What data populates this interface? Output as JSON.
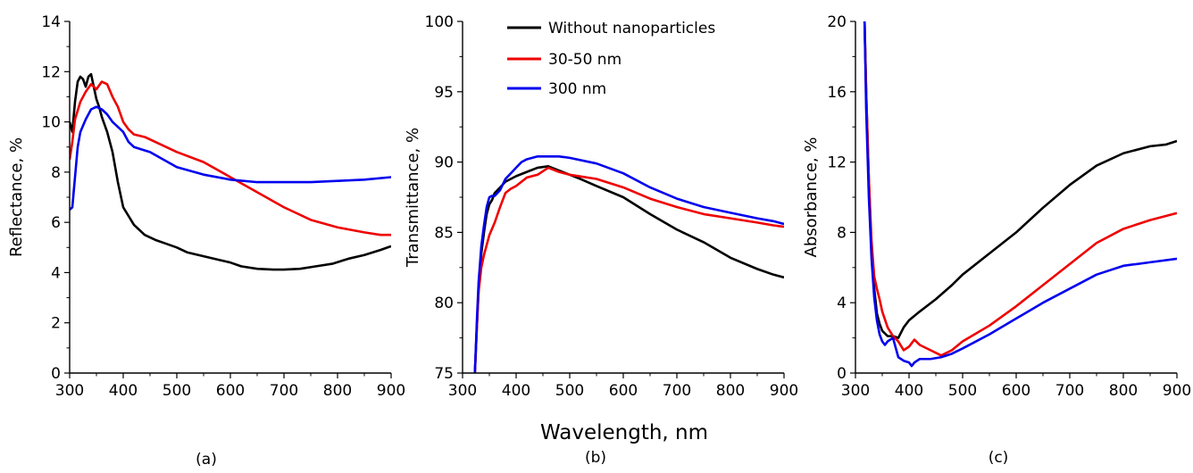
{
  "shared_xlabel": "Wavelength, nm",
  "legend": [
    {
      "name": "Without nanoparticles",
      "color": "#000000"
    },
    {
      "name": "30-50 nm",
      "color": "#ee0000"
    },
    {
      "name": "300 nm",
      "color": "#0000ee"
    }
  ],
  "chart_data": [
    {
      "type": "line",
      "panel_label": "(a)",
      "ylabel": "Reflectance, %",
      "xlim": [
        300,
        900
      ],
      "ylim": [
        0,
        14
      ],
      "xticks": [
        300,
        400,
        500,
        600,
        700,
        800,
        900
      ],
      "yticks": [
        0,
        2,
        4,
        6,
        8,
        10,
        12,
        14
      ],
      "series": [
        {
          "name": "Without nanoparticles",
          "color": "#000000",
          "x": [
            300,
            305,
            310,
            315,
            320,
            325,
            330,
            335,
            340,
            345,
            350,
            355,
            360,
            370,
            380,
            390,
            400,
            420,
            440,
            460,
            480,
            500,
            520,
            550,
            580,
            600,
            620,
            650,
            680,
            700,
            730,
            760,
            790,
            820,
            850,
            880,
            900
          ],
          "y": [
            10,
            9.6,
            10.8,
            11.6,
            11.8,
            11.7,
            11.4,
            11.8,
            11.9,
            11.4,
            10.9,
            10.6,
            10.2,
            9.6,
            8.8,
            7.6,
            6.6,
            5.9,
            5.5,
            5.3,
            5.15,
            5.0,
            4.8,
            4.65,
            4.5,
            4.4,
            4.25,
            4.15,
            4.12,
            4.12,
            4.15,
            4.25,
            4.35,
            4.55,
            4.7,
            4.9,
            5.05
          ]
        },
        {
          "name": "30-50 nm",
          "color": "#ee0000",
          "x": [
            300,
            305,
            310,
            320,
            330,
            340,
            350,
            360,
            370,
            380,
            390,
            400,
            410,
            420,
            440,
            460,
            500,
            550,
            600,
            650,
            700,
            750,
            800,
            850,
            880,
            900
          ],
          "y": [
            8.5,
            9.2,
            10.1,
            10.8,
            11.2,
            11.5,
            11.3,
            11.6,
            11.5,
            11.0,
            10.6,
            10.0,
            9.7,
            9.5,
            9.4,
            9.2,
            8.8,
            8.4,
            7.8,
            7.2,
            6.6,
            6.1,
            5.8,
            5.6,
            5.5,
            5.5
          ]
        },
        {
          "name": "300 nm",
          "color": "#0000ee",
          "x": [
            300,
            305,
            310,
            315,
            320,
            330,
            340,
            350,
            360,
            370,
            380,
            390,
            400,
            410,
            420,
            450,
            500,
            550,
            600,
            650,
            700,
            750,
            800,
            850,
            900
          ],
          "y": [
            6.5,
            6.6,
            7.8,
            9.0,
            9.6,
            10.1,
            10.5,
            10.6,
            10.5,
            10.3,
            10.0,
            9.8,
            9.6,
            9.2,
            9.0,
            8.8,
            8.2,
            7.9,
            7.7,
            7.6,
            7.6,
            7.6,
            7.65,
            7.7,
            7.8
          ]
        }
      ]
    },
    {
      "type": "line",
      "panel_label": "(b)",
      "ylabel": "Transmittance, %",
      "xlim": [
        300,
        900
      ],
      "ylim": [
        75,
        100
      ],
      "xticks": [
        300,
        400,
        500,
        600,
        700,
        800,
        900
      ],
      "yticks": [
        75,
        80,
        85,
        90,
        95,
        100
      ],
      "series": [
        {
          "name": "Without nanoparticles",
          "color": "#000000",
          "x": [
            323,
            327,
            330,
            335,
            340,
            345,
            350,
            355,
            360,
            370,
            380,
            390,
            400,
            420,
            440,
            460,
            480,
            500,
            520,
            550,
            600,
            650,
            700,
            750,
            800,
            850,
            880,
            900
          ],
          "y": [
            75,
            78.5,
            81,
            83.5,
            85,
            86.3,
            87,
            87.3,
            87.8,
            88.2,
            88.6,
            88.8,
            89,
            89.3,
            89.6,
            89.7,
            89.4,
            89.1,
            88.8,
            88.3,
            87.5,
            86.3,
            85.2,
            84.3,
            83.2,
            82.4,
            82.0,
            81.8
          ]
        },
        {
          "name": "30-50 nm",
          "color": "#ee0000",
          "x": [
            323,
            327,
            330,
            335,
            340,
            350,
            360,
            370,
            380,
            390,
            400,
            420,
            440,
            460,
            480,
            500,
            550,
            600,
            650,
            700,
            750,
            800,
            850,
            880,
            900
          ],
          "y": [
            75,
            78.5,
            80.8,
            82.5,
            83.4,
            84.8,
            85.7,
            86.8,
            87.8,
            88.1,
            88.3,
            88.9,
            89.1,
            89.6,
            89.3,
            89.1,
            88.8,
            88.2,
            87.4,
            86.8,
            86.3,
            86,
            85.7,
            85.5,
            85.4
          ]
        },
        {
          "name": "300 nm",
          "color": "#0000ee",
          "x": [
            323,
            327,
            330,
            335,
            340,
            345,
            350,
            355,
            360,
            370,
            380,
            390,
            400,
            410,
            420,
            440,
            460,
            480,
            500,
            550,
            600,
            650,
            700,
            750,
            800,
            850,
            880,
            900
          ],
          "y": [
            75,
            79,
            81.5,
            84,
            85.5,
            86.8,
            87.5,
            87.6,
            87.6,
            88,
            88.8,
            89.2,
            89.6,
            90.0,
            90.2,
            90.4,
            90.4,
            90.4,
            90.3,
            89.9,
            89.2,
            88.2,
            87.4,
            86.8,
            86.4,
            86,
            85.8,
            85.6
          ]
        }
      ]
    },
    {
      "type": "line",
      "panel_label": "(c)",
      "ylabel": "Absorbance, %",
      "xlim": [
        300,
        900
      ],
      "ylim": [
        0,
        20
      ],
      "xticks": [
        300,
        400,
        500,
        600,
        700,
        800,
        900
      ],
      "yticks": [
        0,
        4,
        8,
        12,
        16,
        20
      ],
      "series": [
        {
          "name": "Without nanoparticles",
          "color": "#000000",
          "x": [
            317,
            320,
            325,
            330,
            335,
            340,
            345,
            350,
            360,
            370,
            380,
            390,
            400,
            420,
            450,
            480,
            500,
            550,
            600,
            650,
            700,
            750,
            800,
            850,
            880,
            900
          ],
          "y": [
            20,
            16,
            11,
            7,
            4.8,
            3.4,
            2.8,
            2.4,
            2.1,
            2.1,
            2.0,
            2.6,
            3.0,
            3.5,
            4.2,
            5.0,
            5.6,
            6.8,
            8.0,
            9.4,
            10.7,
            11.8,
            12.5,
            12.9,
            13.0,
            13.2
          ]
        },
        {
          "name": "30-50 nm",
          "color": "#ee0000",
          "x": [
            317,
            320,
            325,
            330,
            335,
            340,
            345,
            350,
            360,
            370,
            380,
            390,
            400,
            410,
            420,
            440,
            460,
            480,
            500,
            550,
            600,
            650,
            700,
            750,
            800,
            850,
            900
          ],
          "y": [
            20,
            16,
            11,
            7.5,
            5.5,
            4.8,
            4.2,
            3.5,
            2.6,
            2.1,
            1.8,
            1.3,
            1.5,
            1.9,
            1.6,
            1.3,
            1.0,
            1.3,
            1.8,
            2.7,
            3.8,
            5.0,
            6.2,
            7.4,
            8.2,
            8.7,
            9.1
          ]
        },
        {
          "name": "300 nm",
          "color": "#0000ee",
          "x": [
            317,
            320,
            325,
            330,
            335,
            340,
            345,
            350,
            355,
            360,
            370,
            380,
            390,
            400,
            405,
            410,
            420,
            440,
            460,
            480,
            500,
            550,
            600,
            650,
            700,
            750,
            800,
            850,
            900
          ],
          "y": [
            20,
            15,
            10,
            6.5,
            4.3,
            3.0,
            2.2,
            1.8,
            1.6,
            1.8,
            2.0,
            0.9,
            0.7,
            0.6,
            0.4,
            0.6,
            0.8,
            0.8,
            0.9,
            1.1,
            1.4,
            2.2,
            3.1,
            4.0,
            4.8,
            5.6,
            6.1,
            6.3,
            6.5
          ]
        }
      ]
    }
  ]
}
